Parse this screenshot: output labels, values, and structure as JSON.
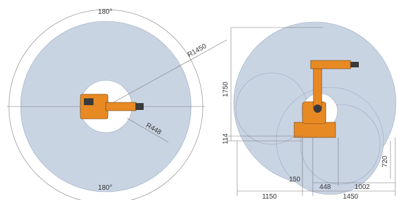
{
  "left_view": {
    "top_angle": "180°",
    "bottom_angle": "180°",
    "outer_radius": "R1450",
    "inner_radius": "R448"
  },
  "side_view": {
    "height": "1750",
    "base_offset": "114",
    "reach_offset": "150",
    "inner_reach": "448",
    "lower_reach": "720",
    "outer_reach": "1002",
    "back_reach": "1150",
    "total_reach": "1450"
  }
}
